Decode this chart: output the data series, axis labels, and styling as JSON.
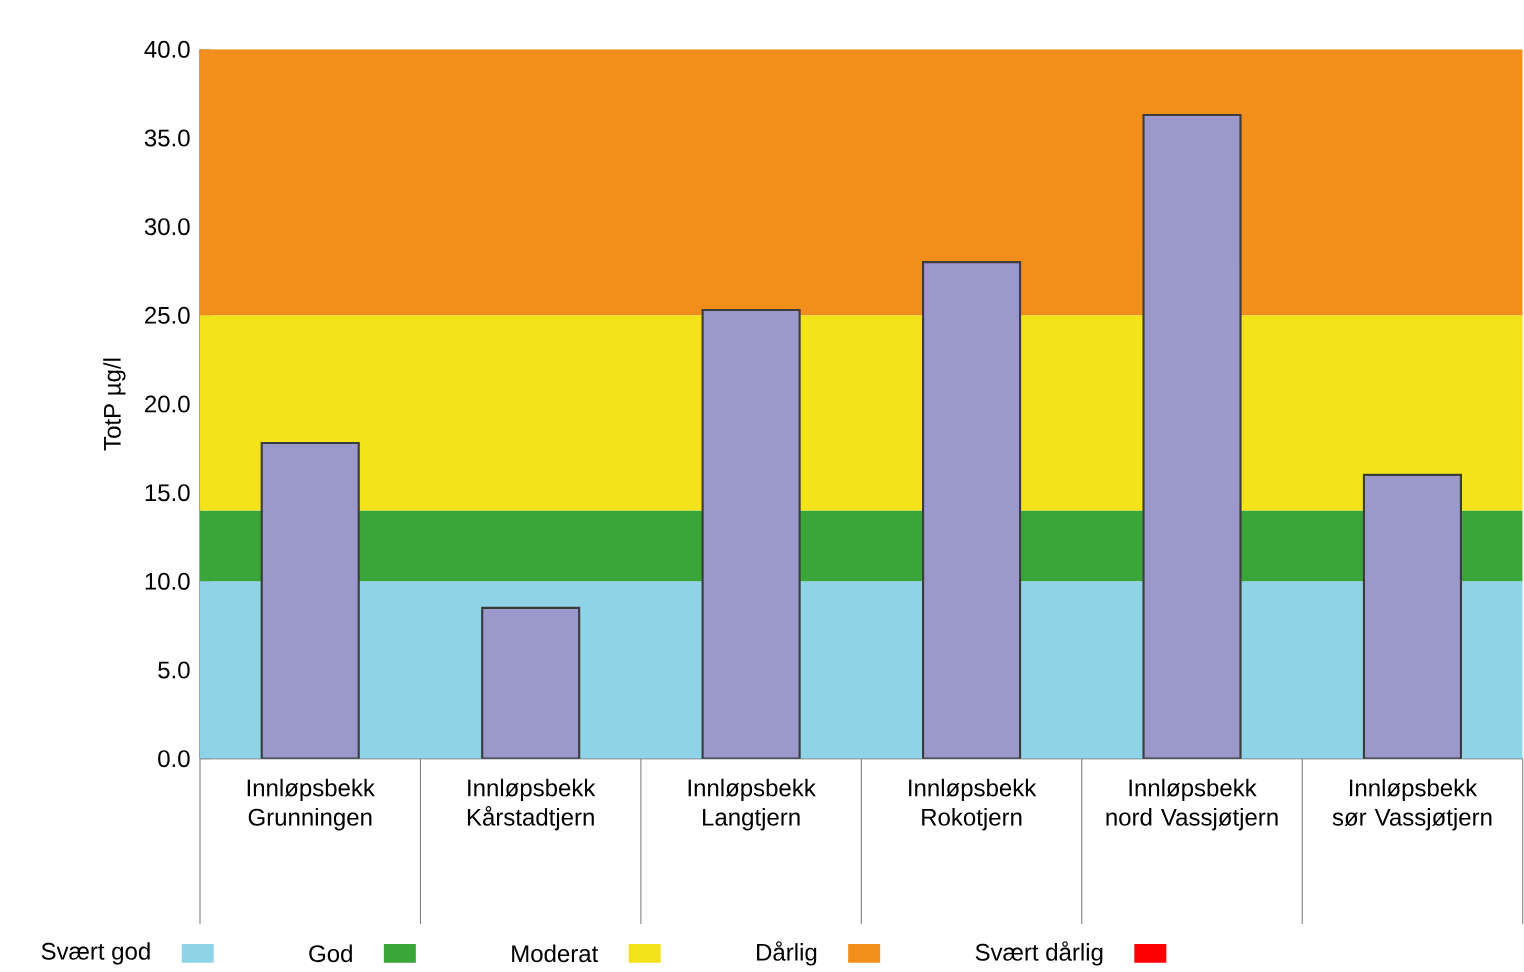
{
  "chart_data": {
    "type": "bar",
    "ylabel": "TotP µg/l",
    "categories": [
      "Innløpsbekk Grunningen",
      "Innløpsbekk Kårstadtjern",
      "Innløpsbekk Langtjern",
      "Innløpsbekk Rokotjern",
      "Innløpsbekk nord Vassjøtjern",
      "Innløpsbekk sør Vassjøtjern"
    ],
    "values": [
      17.8,
      8.5,
      25.3,
      28.0,
      36.3,
      16.0
    ],
    "color": "#9b99cb",
    "ylim": [
      0,
      40
    ],
    "yticks": [
      {
        "value": 0,
        "label": "0.0"
      },
      {
        "value": 5,
        "label": "5.0"
      },
      {
        "value": 10,
        "label": "10.0"
      },
      {
        "value": 15,
        "label": "15.0"
      },
      {
        "value": 20,
        "label": "20.0"
      },
      {
        "value": 25,
        "label": "25.0"
      },
      {
        "value": 30,
        "label": "30.0"
      },
      {
        "value": 35,
        "label": "35.0"
      },
      {
        "value": 40,
        "label": "40.0"
      }
    ],
    "bands": [
      {
        "axis": "y",
        "from": 0,
        "to": 10,
        "label": "Svært god",
        "color": "#8fd3e6"
      },
      {
        "axis": "y",
        "from": 10,
        "to": 14,
        "label": "God",
        "color": "#3aa63a"
      },
      {
        "axis": "y",
        "from": 14,
        "to": 25,
        "label": "Moderat",
        "color": "#f5e31a"
      },
      {
        "axis": "y",
        "from": 25,
        "to": 40,
        "label": "Dårlig",
        "color": "#f28e1c"
      }
    ],
    "annotations": [
      "Svært dårlig"
    ],
    "grid": false,
    "legend": "bottom"
  }
}
